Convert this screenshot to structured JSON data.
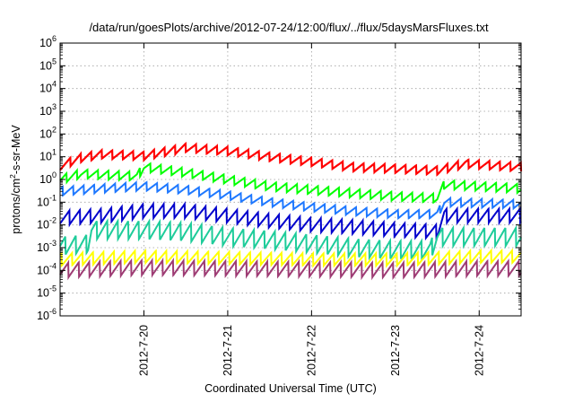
{
  "chart_data": {
    "type": "line",
    "title": "/data/run/goesPlots/archive/2012-07-24/12:00/flux/../flux/5daysMarsFluxes.txt",
    "xlabel": "Coordinated Universal Time (UTC)",
    "ylabel": {
      "prefix": "protons/cm",
      "sup": "2",
      "suffix": "-s-sr-MeV"
    },
    "x_scale": "time",
    "x_range": [
      "2012-07-19T00:00",
      "2012-07-24T12:00"
    ],
    "x_ticks": [
      "2012-7-20",
      "2012-7-21",
      "2012-7-22",
      "2012-7-23",
      "2012-7-24"
    ],
    "y_scale": "log",
    "y_range": [
      1e-06,
      1000000.0
    ],
    "y_ticks": [
      {
        "base": "10",
        "exp": "-6"
      },
      {
        "base": "10",
        "exp": "-5"
      },
      {
        "base": "10",
        "exp": "-4"
      },
      {
        "base": "10",
        "exp": "-3"
      },
      {
        "base": "10",
        "exp": "-2"
      },
      {
        "base": "10",
        "exp": "-1"
      },
      {
        "base": "10",
        "exp": "0"
      },
      {
        "base": "10",
        "exp": "1"
      },
      {
        "base": "10",
        "exp": "2"
      },
      {
        "base": "10",
        "exp": "3"
      },
      {
        "base": "10",
        "exp": "4"
      },
      {
        "base": "10",
        "exp": "5"
      },
      {
        "base": "10",
        "exp": "6"
      }
    ],
    "grid": true,
    "sawtooth_period_hours": 3,
    "series": [
      {
        "color": "#ff0000",
        "width": 2.2,
        "ratio": 2.4,
        "x": [
          "2012-07-19T00:00",
          "2012-07-19T06:00",
          "2012-07-19T12:00",
          "2012-07-20T00:00",
          "2012-07-20T12:00",
          "2012-07-21T00:00",
          "2012-07-21T12:00",
          "2012-07-22T00:00",
          "2012-07-22T12:00",
          "2012-07-23T00:00",
          "2012-07-23T12:00",
          "2012-07-23T20:00",
          "2012-07-24T12:00"
        ],
        "y": [
          4,
          9,
          13,
          11,
          25,
          18,
          10,
          6,
          3.5,
          3,
          2.5,
          5,
          3.5
        ]
      },
      {
        "color": "#00ff00",
        "width": 2.0,
        "ratio": 2.5,
        "x": [
          "2012-07-19T00:00",
          "2012-07-19T06:00",
          "2012-07-19T12:00",
          "2012-07-19T22:00",
          "2012-07-20T00:00",
          "2012-07-20T12:00",
          "2012-07-21T00:00",
          "2012-07-21T12:00",
          "2012-07-22T00:00",
          "2012-07-22T12:00",
          "2012-07-23T00:00",
          "2012-07-23T12:00",
          "2012-07-23T14:00",
          "2012-07-24T12:00"
        ],
        "y": [
          1,
          1.8,
          1.6,
          1.4,
          3.5,
          2,
          1,
          0.5,
          0.35,
          0.25,
          0.18,
          0.15,
          0.6,
          0.4
        ]
      },
      {
        "color": "#1e78ff",
        "width": 2.0,
        "ratio": 2.4,
        "x": [
          "2012-07-19T00:00",
          "2012-07-19T12:00",
          "2012-07-20T00:00",
          "2012-07-20T12:00",
          "2012-07-21T00:00",
          "2012-07-21T12:00",
          "2012-07-22T00:00",
          "2012-07-22T12:00",
          "2012-07-23T00:00",
          "2012-07-23T12:00",
          "2012-07-23T14:00",
          "2012-07-24T12:00"
        ],
        "y": [
          0.3,
          0.4,
          0.5,
          0.35,
          0.2,
          0.1,
          0.06,
          0.04,
          0.03,
          0.03,
          0.1,
          0.08
        ]
      },
      {
        "color": "#0000cc",
        "width": 2.0,
        "ratio": 4.2,
        "x": [
          "2012-07-19T00:00",
          "2012-07-19T12:00",
          "2012-07-20T00:00",
          "2012-07-20T12:00",
          "2012-07-21T00:00",
          "2012-07-21T12:00",
          "2012-07-22T00:00",
          "2012-07-22T12:00",
          "2012-07-23T00:00",
          "2012-07-23T12:00",
          "2012-07-23T14:00",
          "2012-07-24T12:00"
        ],
        "y": [
          0.02,
          0.025,
          0.04,
          0.04,
          0.025,
          0.015,
          0.01,
          0.008,
          0.006,
          0.005,
          0.025,
          0.025
        ]
      },
      {
        "color": "#1ecc9a",
        "width": 2.0,
        "ratio": 6.5,
        "x": [
          "2012-07-19T00:00",
          "2012-07-19T08:00",
          "2012-07-19T09:00",
          "2012-07-20T00:00",
          "2012-07-20T12:00",
          "2012-07-21T00:00",
          "2012-07-21T12:00",
          "2012-07-22T00:00",
          "2012-07-22T12:00",
          "2012-07-23T00:00",
          "2012-07-23T10:00",
          "2012-07-23T12:00",
          "2012-07-24T12:00"
        ],
        "y": [
          0.0012,
          0.0015,
          0.006,
          0.006,
          0.005,
          0.003,
          0.0022,
          0.0015,
          0.001,
          0.0008,
          0.0008,
          0.003,
          0.003
        ]
      },
      {
        "color": "#ffff00",
        "width": 2.0,
        "ratio": 3.5,
        "x": [
          "2012-07-19T00:00",
          "2012-07-20T00:00",
          "2012-07-21T00:00",
          "2012-07-22T00:00",
          "2012-07-23T00:00",
          "2012-07-24T00:00",
          "2012-07-24T12:00"
        ],
        "y": [
          0.0003,
          0.0004,
          0.00035,
          0.0003,
          0.0003,
          0.0004,
          0.0004
        ]
      },
      {
        "color": "#9e3c74",
        "width": 2.0,
        "ratio": 4.5,
        "x": [
          "2012-07-19T00:00",
          "2012-07-20T00:00",
          "2012-07-21T00:00",
          "2012-07-22T00:00",
          "2012-07-23T00:00",
          "2012-07-24T00:00",
          "2012-07-24T12:00"
        ],
        "y": [
          0.0001,
          0.00013,
          0.00012,
          0.00011,
          0.0001,
          0.00012,
          0.00012
        ]
      }
    ]
  }
}
